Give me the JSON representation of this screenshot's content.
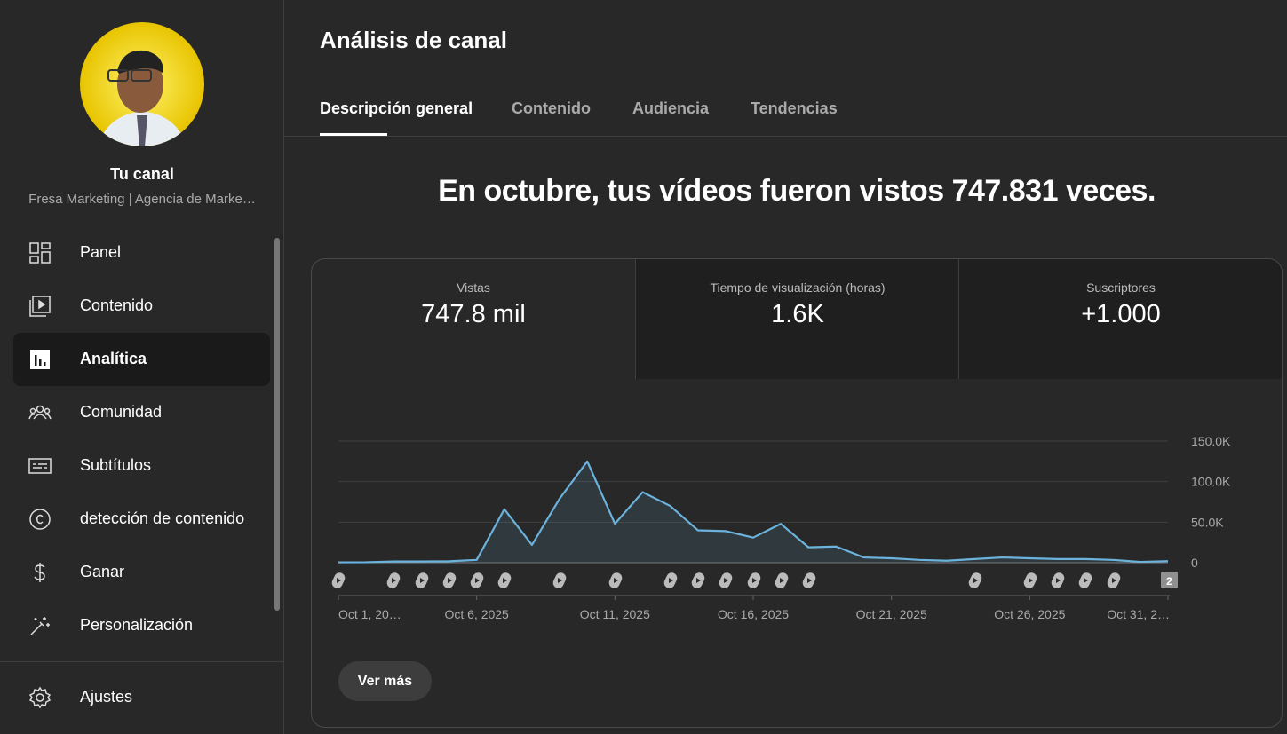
{
  "sidebar": {
    "channel_label": "Tu canal",
    "channel_name": "Fresa Marketing | Agencia de Marke…",
    "menu": [
      "Panel",
      "Contenido",
      "Analítica",
      "Comunidad",
      "Subtítulos",
      "detección de contenido",
      "Ganar",
      "Personalización"
    ],
    "settings": "Ajustes"
  },
  "header": {
    "title": "Análisis de canal",
    "tabs": [
      "Descripción general",
      "Contenido",
      "Audiencia",
      "Tendencias"
    ]
  },
  "headline": "En octubre, tus vídeos fueron vistos 747.831 veces.",
  "metrics": [
    {
      "label": "Vistas",
      "value": "747.8 mil"
    },
    {
      "label": "Tiempo de visualización (horas)",
      "value": "1.6K"
    },
    {
      "label": "Suscriptores",
      "value": "+1.000"
    }
  ],
  "chart_data": {
    "type": "line",
    "color": "#6bb3dc",
    "categories": [
      "Oct 1, 20…",
      null,
      null,
      null,
      null,
      "Oct 6, 2025",
      null,
      null,
      null,
      null,
      "Oct 11, 2025",
      null,
      null,
      null,
      null,
      "Oct 16, 2025",
      null,
      null,
      null,
      null,
      "Oct 21, 2025",
      null,
      null,
      null,
      null,
      "Oct 26, 2025",
      null,
      null,
      null,
      null,
      "Oct 31, 2…"
    ],
    "values": [
      500,
      600,
      1500,
      1500,
      1800,
      3500,
      66000,
      22000,
      79000,
      125000,
      48000,
      87000,
      70000,
      40000,
      39000,
      31000,
      48000,
      19000,
      20000,
      6500,
      5500,
      3500,
      2500,
      4500,
      6500,
      5500,
      4500,
      4500,
      3500,
      1000,
      2000
    ],
    "ylim": [
      0,
      150000
    ],
    "yticks": [
      0,
      {
        "value": 50000,
        "label": "50.0K"
      },
      {
        "value": 100000,
        "label": "100.0K"
      },
      {
        "value": 150000,
        "label": "150.0K"
      }
    ],
    "grid": true
  },
  "badge": "2",
  "more_button": "Ver más"
}
